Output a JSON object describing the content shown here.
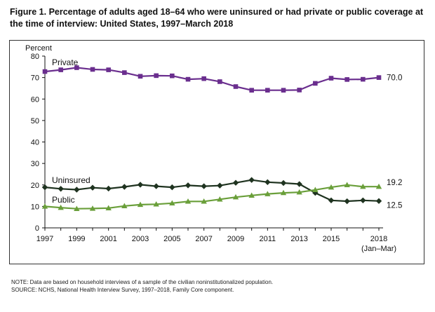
{
  "figure": {
    "title": "Figure 1. Percentage of adults aged 18–64 who were uninsured or had private or public coverage at the time of interview: United States, 1997–March 2018",
    "note": "NOTE: Data are based on household interviews of a sample of the civilian noninstitutionalized population.",
    "source": "SOURCE: NCHS, National Health Interview Survey, 1997–2018, Family Core component."
  },
  "chart_data": {
    "type": "line",
    "title": "Figure 1. Percentage of adults aged 18–64 who were uninsured or had private or public coverage at the time of interview: United States, 1997–March 2018",
    "ylabel": "Percent",
    "xlabel": "",
    "ylim": [
      0,
      80
    ],
    "yticks": [
      0,
      10,
      20,
      30,
      40,
      50,
      60,
      70,
      80
    ],
    "x": [
      1997,
      1998,
      1999,
      2000,
      2001,
      2002,
      2003,
      2004,
      2005,
      2006,
      2007,
      2008,
      2009,
      2010,
      2011,
      2012,
      2013,
      2014,
      2015,
      2016,
      2017,
      2018
    ],
    "xtick_labels": [
      "1997",
      "1999",
      "2001",
      "2003",
      "2005",
      "2007",
      "2009",
      "2011",
      "2013",
      "2015",
      "2018"
    ],
    "xtick_values": [
      1997,
      1999,
      2001,
      2003,
      2005,
      2007,
      2009,
      2011,
      2013,
      2015,
      2018
    ],
    "xtick_sublabel": "(Jan–Mar)",
    "grid": false,
    "legend": "inline labels",
    "series": [
      {
        "name": "Private",
        "color": "#6a2e8e",
        "marker": "square",
        "end_label": "70.0",
        "values": [
          72.8,
          73.6,
          74.6,
          73.8,
          73.6,
          72.3,
          70.6,
          70.9,
          70.8,
          69.2,
          69.5,
          68.1,
          65.8,
          64.1,
          64.1,
          64.1,
          64.2,
          67.3,
          69.7,
          69.1,
          69.2,
          70.0
        ]
      },
      {
        "name": "Uninsured",
        "color": "#1f3320",
        "marker": "diamond",
        "end_label": "12.5",
        "values": [
          18.9,
          18.2,
          17.8,
          18.7,
          18.3,
          19.1,
          20.1,
          19.4,
          18.9,
          19.8,
          19.4,
          19.7,
          21.0,
          22.3,
          21.3,
          20.9,
          20.4,
          16.3,
          12.8,
          12.4,
          12.8,
          12.5
        ]
      },
      {
        "name": "Public",
        "color": "#6a9f3a",
        "marker": "triangle",
        "end_label": "19.2",
        "values": [
          10.0,
          9.4,
          8.9,
          9.0,
          9.2,
          10.2,
          10.8,
          11.0,
          11.5,
          12.3,
          12.3,
          13.3,
          14.3,
          15.1,
          15.8,
          16.3,
          16.6,
          17.7,
          18.9,
          20.0,
          19.2,
          19.2
        ]
      }
    ]
  }
}
